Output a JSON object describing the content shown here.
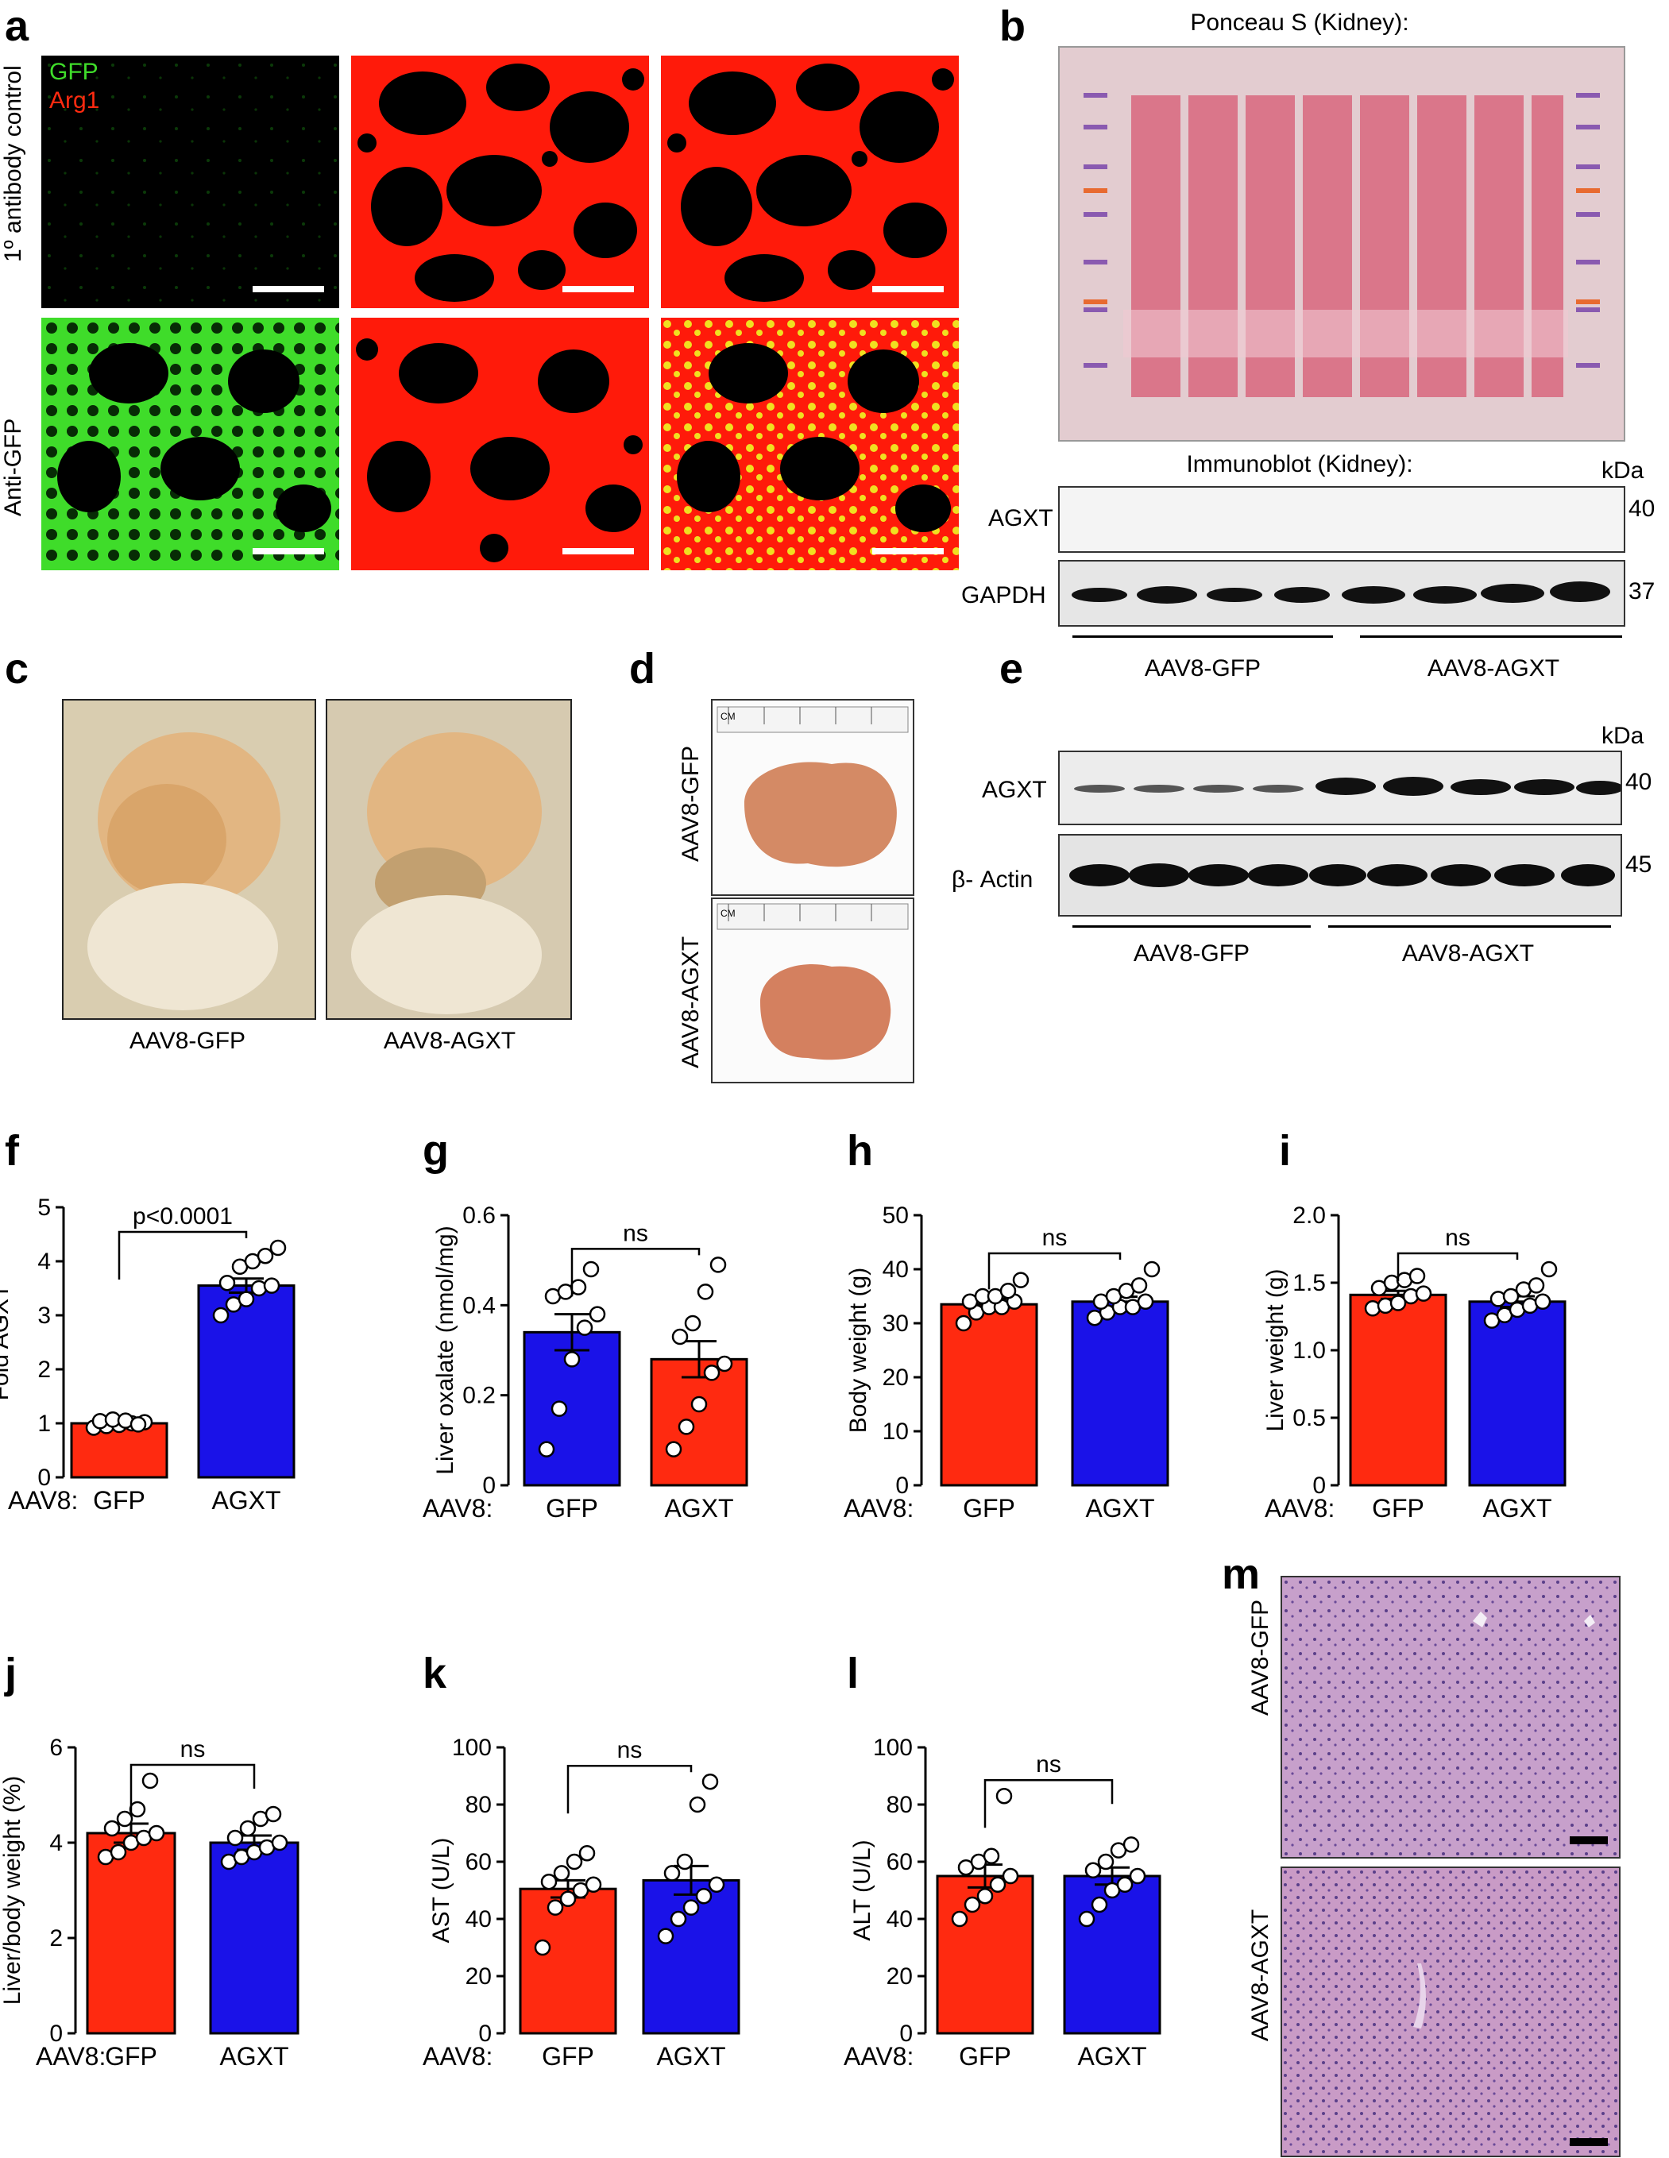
{
  "panel_letters": {
    "a": "a",
    "b": "b",
    "c": "c",
    "d": "d",
    "e": "e",
    "f": "f",
    "g": "g",
    "h": "h",
    "i": "i",
    "j": "j",
    "k": "k",
    "l": "l",
    "m": "m"
  },
  "panel_a": {
    "legend_gfp": "GFP",
    "legend_arg1": "Arg1",
    "row1_label": "1º antibody control",
    "row2_label": "Anti-GFP",
    "colors": {
      "gfp": "#3fdc2a",
      "arg1": "#ff1a0a",
      "merge": "#f0e020"
    }
  },
  "panel_b": {
    "ponceau_title": "Ponceau S (Kidney):",
    "immunoblot_title": "Immunoblot  (Kidney):",
    "kda": "kDa",
    "band1": "AGXT",
    "band1_kda": "40",
    "band2": "GAPDH",
    "band2_kda": "37",
    "group1": "AAV8-GFP",
    "group2": "AAV8-AGXT"
  },
  "panel_c": {
    "label1": "AAV8-GFP",
    "label2": "AAV8-AGXT"
  },
  "panel_d": {
    "label1": "AAV8-GFP",
    "label2": "AAV8-AGXT",
    "ruler_unit": "CM"
  },
  "panel_e": {
    "kda": "kDa",
    "band1": "AGXT",
    "band1_kda": "40",
    "band2": "β- Actin",
    "band2_kda": "45",
    "group1": "AAV8-GFP",
    "group2": "AAV8-AGXT"
  },
  "panel_m": {
    "label1": "AAV8-GFP",
    "label2": "AAV8-AGXT"
  },
  "chart_data": [
    {
      "panel": "f",
      "type": "bar",
      "ylabel": "Fold AGXT",
      "ylim": [
        0,
        5
      ],
      "yticks": [
        "0",
        "1",
        "2",
        "3",
        "4",
        "5"
      ],
      "xprefix": "AAV8:",
      "categories": [
        "GFP",
        "AGXT"
      ],
      "colors": [
        "#ff2a10",
        "#1a12e8"
      ],
      "values": [
        1.0,
        3.55
      ],
      "errors": [
        0.05,
        0.13
      ],
      "points": [
        [
          0.92,
          0.95,
          0.97,
          1.0,
          1.02,
          1.04,
          1.07,
          1.05,
          0.98
        ],
        [
          3.0,
          3.2,
          3.3,
          3.5,
          3.55,
          3.6,
          3.9,
          4.0,
          4.1,
          4.25
        ]
      ],
      "annotation": "p<0.0001"
    },
    {
      "panel": "g",
      "type": "bar",
      "ylabel": "Liver oxalate (nmol/mg)",
      "ylim": [
        0,
        0.6
      ],
      "yticks": [
        "0",
        "0.2",
        "0.4",
        "0.6"
      ],
      "xprefix": "AAV8:",
      "categories": [
        "GFP",
        "AGXT"
      ],
      "colors": [
        "#1a12e8",
        "#ff2a10"
      ],
      "values": [
        0.34,
        0.28
      ],
      "errors": [
        0.04,
        0.04
      ],
      "points": [
        [
          0.08,
          0.17,
          0.28,
          0.35,
          0.38,
          0.42,
          0.43,
          0.44,
          0.48
        ],
        [
          0.08,
          0.13,
          0.18,
          0.25,
          0.27,
          0.33,
          0.36,
          0.43,
          0.49
        ]
      ],
      "annotation": "ns"
    },
    {
      "panel": "h",
      "type": "bar",
      "ylabel": "Body weight (g)",
      "ylim": [
        0,
        50
      ],
      "yticks": [
        "0",
        "10",
        "20",
        "30",
        "40",
        "50"
      ],
      "xprefix": "AAV8:",
      "categories": [
        "GFP",
        "AGXT"
      ],
      "colors": [
        "#ff2a10",
        "#1a12e8"
      ],
      "values": [
        33.5,
        34.0
      ],
      "errors": [
        1.0,
        0.9
      ],
      "points": [
        [
          30,
          32,
          33,
          33,
          34,
          34,
          35,
          35,
          36,
          38
        ],
        [
          31,
          32,
          33,
          33,
          34,
          34,
          35,
          36,
          37,
          40
        ]
      ],
      "annotation": "ns"
    },
    {
      "panel": "i",
      "type": "bar",
      "ylabel": "Liver weight (g)",
      "ylim": [
        0,
        2.0
      ],
      "yticks": [
        "0",
        "0.5",
        "1.0",
        "1.5",
        "2.0"
      ],
      "xprefix": "AAV8:",
      "categories": [
        "GFP",
        "AGXT"
      ],
      "colors": [
        "#ff2a10",
        "#1a12e8"
      ],
      "values": [
        1.41,
        1.36
      ],
      "errors": [
        0.03,
        0.04
      ],
      "points": [
        [
          1.31,
          1.33,
          1.35,
          1.4,
          1.42,
          1.46,
          1.5,
          1.52,
          1.55
        ],
        [
          1.22,
          1.26,
          1.3,
          1.33,
          1.36,
          1.38,
          1.4,
          1.45,
          1.48,
          1.6
        ]
      ],
      "annotation": "ns"
    },
    {
      "panel": "j",
      "type": "bar",
      "ylabel": "Liver/body weight (%)",
      "ylim": [
        0,
        6
      ],
      "yticks": [
        "0",
        "2",
        "4",
        "6"
      ],
      "xprefix": "AAV8:",
      "categories": [
        "GFP",
        "AGXT"
      ],
      "colors": [
        "#ff2a10",
        "#1a12e8"
      ],
      "values": [
        4.2,
        4.0
      ],
      "errors": [
        0.2,
        0.15
      ],
      "points": [
        [
          3.7,
          3.8,
          4.0,
          4.1,
          4.2,
          4.3,
          4.5,
          4.7,
          5.3
        ],
        [
          3.6,
          3.7,
          3.8,
          3.9,
          4.0,
          4.1,
          4.3,
          4.5,
          4.6
        ]
      ],
      "annotation": "ns"
    },
    {
      "panel": "k",
      "type": "bar",
      "ylabel": "AST (U/L)",
      "ylim": [
        0,
        100
      ],
      "yticks": [
        "0",
        "20",
        "40",
        "60",
        "80",
        "100"
      ],
      "xprefix": "AAV8:",
      "categories": [
        "GFP",
        "AGXT"
      ],
      "colors": [
        "#ff2a10",
        "#1a12e8"
      ],
      "values": [
        50.5,
        53.5
      ],
      "errors": [
        3,
        5
      ],
      "points": [
        [
          30,
          44,
          47,
          50,
          52,
          53,
          56,
          60,
          63
        ],
        [
          34,
          40,
          44,
          48,
          52,
          56,
          60,
          80,
          88
        ]
      ],
      "annotation": "ns"
    },
    {
      "panel": "l",
      "type": "bar",
      "ylabel": "ALT (U/L)",
      "ylim": [
        0,
        100
      ],
      "yticks": [
        "0",
        "20",
        "40",
        "60",
        "80",
        "100"
      ],
      "xprefix": "AAV8:",
      "categories": [
        "GFP",
        "AGXT"
      ],
      "colors": [
        "#ff2a10",
        "#1a12e8"
      ],
      "values": [
        55,
        55
      ],
      "errors": [
        4,
        3
      ],
      "points": [
        [
          40,
          45,
          48,
          52,
          55,
          58,
          60,
          62,
          83
        ],
        [
          40,
          45,
          50,
          52,
          55,
          57,
          60,
          64,
          66
        ]
      ],
      "annotation": "ns"
    }
  ]
}
